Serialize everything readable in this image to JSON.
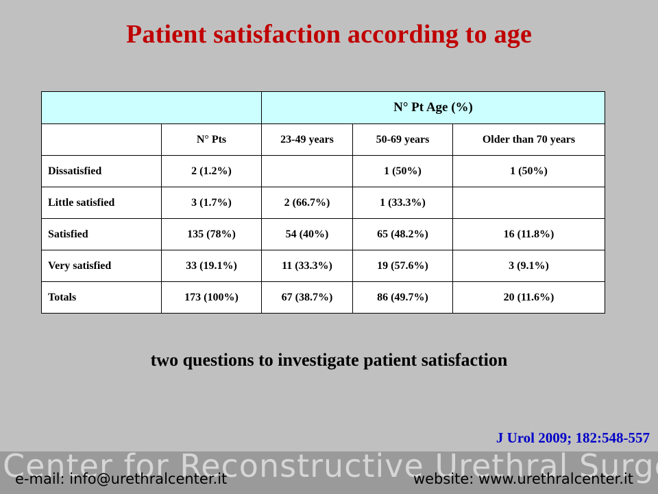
{
  "slide": {
    "title": "Patient satisfaction according to age",
    "subtitle": "two questions to investigate patient satisfaction",
    "citation": "J Urol  2009; 182:548-557"
  },
  "footer": {
    "banner": "Center for Reconstructive Urethral Surgery",
    "email": "e-mail: info@urethralcenter.it",
    "website": "website: www.urethralcenter.it"
  },
  "colors": {
    "title": "#c00000",
    "header_fill": "#ccffff",
    "citation": "#0000c8",
    "background": "#c0c0c0"
  },
  "chart_data": {
    "type": "table",
    "group_header": "N°  Pt Age (%)",
    "columns": [
      "",
      "N°  Pts",
      "23-49 years",
      "50-69 years",
      "Older than 70 years"
    ],
    "rows": [
      [
        "Dissatisfied",
        "2 (1.2%)",
        "",
        "1 (50%)",
        "1 (50%)"
      ],
      [
        "Little satisfied",
        "3 (1.7%)",
        "2 (66.7%)",
        "1 (33.3%)",
        ""
      ],
      [
        "Satisfied",
        "135 (78%)",
        "54 (40%)",
        "65 (48.2%)",
        "16 (11.8%)"
      ],
      [
        "Very satisfied",
        "33 (19.1%)",
        "11 (33.3%)",
        "19 (57.6%)",
        "3 (9.1%)"
      ],
      [
        "Totals",
        "173 (100%)",
        "67 (38.7%)",
        "86 (49.7%)",
        "20 (11.6%)"
      ]
    ]
  }
}
